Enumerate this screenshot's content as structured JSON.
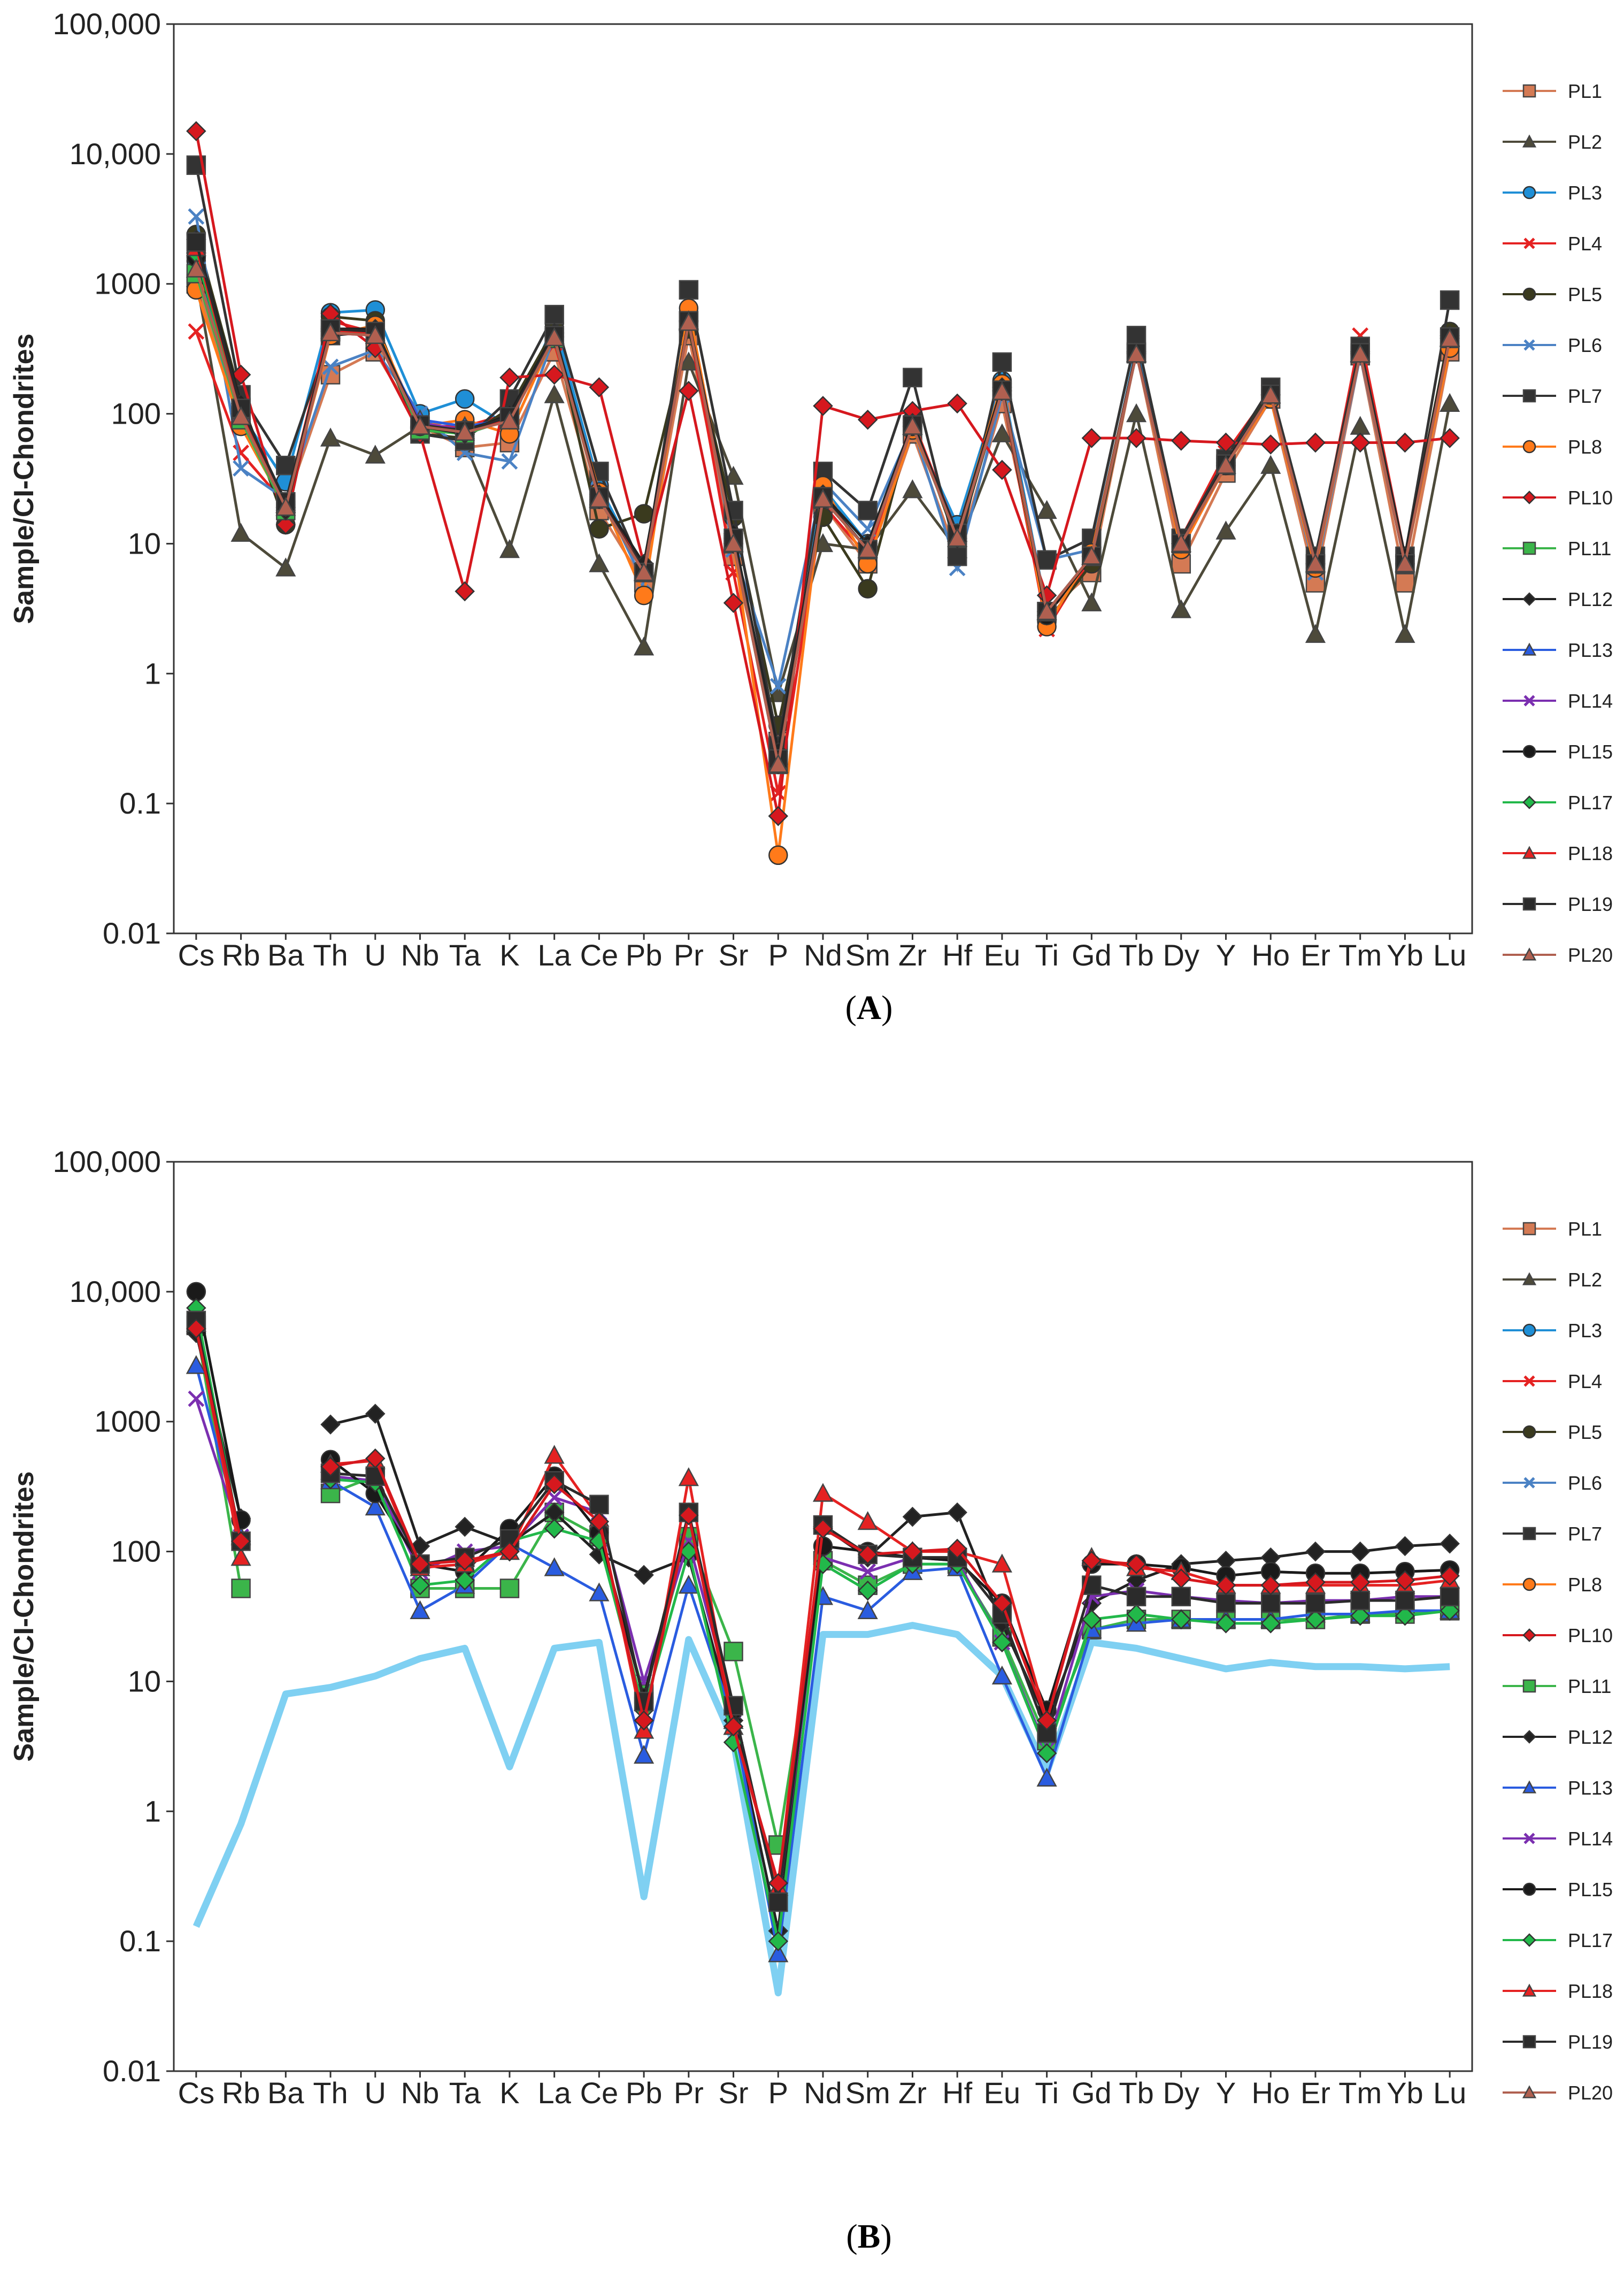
{
  "figure": {
    "caption_a_open": "(",
    "caption_a_letter": "A",
    "caption_a_close": ")",
    "caption_b_open": "(",
    "caption_b_letter": "B",
    "caption_b_close": ")"
  },
  "series_styles": {
    "PL1": {
      "color": "#d47a54",
      "marker": "square"
    },
    "PL2": {
      "color": "#4d4a3a",
      "marker": "triangle"
    },
    "PL3": {
      "color": "#1f8fd6",
      "marker": "circle"
    },
    "PL4": {
      "color": "#e52222",
      "marker": "x"
    },
    "PL5": {
      "color": "#3a3a1e",
      "marker": "circle"
    },
    "PL6": {
      "color": "#4b82c4",
      "marker": "x"
    },
    "PL7": {
      "color": "#333333",
      "marker": "square"
    },
    "PL8": {
      "color": "#ff7a1a",
      "marker": "circle"
    },
    "PL10": {
      "color": "#d6181e",
      "marker": "diamond"
    },
    "PL11": {
      "color": "#3bb54a",
      "marker": "square"
    },
    "PL12": {
      "color": "#222222",
      "marker": "diamond"
    },
    "PL13": {
      "color": "#2a5ce0",
      "marker": "triangle"
    },
    "PL14": {
      "color": "#7b2fb0",
      "marker": "x"
    },
    "PL15": {
      "color": "#1a1a1a",
      "marker": "circle"
    },
    "PL17": {
      "color": "#22b84a",
      "marker": "diamond"
    },
    "PL18": {
      "color": "#e52222",
      "marker": "triangle"
    },
    "PL19": {
      "color": "#2b2b2b",
      "marker": "square"
    },
    "PL20": {
      "color": "#b06050",
      "marker": "triangle"
    }
  },
  "chart_data": [
    {
      "type": "line",
      "panel": "A",
      "ylabel": "Sample/CI-Chondrites",
      "xlabel": "",
      "yscale": "log",
      "ylim": [
        0.01,
        100000
      ],
      "yticks": [
        "0.01",
        "0.1",
        "1",
        "10",
        "100",
        "1000",
        "10,000",
        "100,000"
      ],
      "categories": [
        "Cs",
        "Rb",
        "Ba",
        "Th",
        "U",
        "Nb",
        "Ta",
        "K",
        "La",
        "Ce",
        "Pb",
        "Pr",
        "Sr",
        "P",
        "Nd",
        "Sm",
        "Zr",
        "Hf",
        "Eu",
        "Ti",
        "Gd",
        "Tb",
        "Dy",
        "Y",
        "Ho",
        "Er",
        "Tm",
        "Yb",
        "Lu"
      ],
      "legend": [
        "PL1",
        "PL2",
        "PL3",
        "PL4",
        "PL5",
        "PL6",
        "PL7",
        "PL8",
        "PL10",
        "PL11",
        "PL12",
        "PL13",
        "PL14",
        "PL15",
        "PL17",
        "PL18",
        "PL19",
        "PL20"
      ],
      "series": [
        {
          "name": "PL1",
          "values": [
            1000,
            90,
            20,
            200,
            300,
            80,
            55,
            60,
            300,
            18,
            5,
            400,
            8,
            0.3,
            20,
            7,
            70,
            8,
            120,
            3,
            6,
            300,
            7,
            35,
            130,
            5,
            280,
            5,
            300
          ]
        },
        {
          "name": "PL2",
          "values": [
            1100,
            12,
            6.5,
            65,
            48,
            80,
            60,
            9,
            140,
            7,
            1.6,
            250,
            33,
            0.7,
            10,
            9,
            26,
            9,
            70,
            18,
            3.5,
            100,
            3.1,
            12.5,
            40,
            2,
            80,
            2,
            120
          ]
        },
        {
          "name": "PL3",
          "values": [
            1500,
            100,
            30,
            600,
            630,
            100,
            130,
            80,
            500,
            28,
            6,
            600,
            10,
            0.2,
            27,
            10,
            80,
            14,
            180,
            3,
            8,
            320,
            10,
            45,
            140,
            7,
            300,
            8,
            420
          ]
        },
        {
          "name": "PL4",
          "values": [
            430,
            50,
            20,
            520,
            420,
            80,
            80,
            100,
            350,
            25,
            6,
            500,
            6,
            0.12,
            20,
            8,
            90,
            12,
            150,
            2.2,
            8,
            300,
            11,
            50,
            150,
            7,
            400,
            8,
            420
          ]
        },
        {
          "name": "PL5",
          "values": [
            2400,
            130,
            14,
            560,
            520,
            70,
            65,
            110,
            450,
            13,
            17,
            450,
            16,
            0.4,
            16,
            4.5,
            90,
            10,
            150,
            2.5,
            7,
            300,
            10,
            40,
            150,
            8,
            320,
            8,
            430
          ]
        },
        {
          "name": "PL6",
          "values": [
            3300,
            38,
            22,
            230,
            310,
            100,
            50,
            43,
            400,
            26,
            5,
            600,
            9,
            0.8,
            30,
            13,
            80,
            6.5,
            140,
            7.5,
            9,
            300,
            11,
            42,
            140,
            6,
            280,
            7,
            400
          ]
        },
        {
          "name": "PL7",
          "values": [
            8200,
            140,
            40,
            400,
            430,
            70,
            62,
            130,
            580,
            36,
            6,
            900,
            18,
            0.28,
            36,
            18,
            190,
            8,
            250,
            7.5,
            11,
            400,
            11,
            45,
            160,
            8,
            330,
            8,
            750
          ]
        },
        {
          "name": "PL8",
          "values": [
            900,
            80,
            19,
            400,
            480,
            80,
            90,
            70,
            400,
            25,
            4,
            650,
            10,
            0.04,
            28,
            7,
            75,
            12,
            170,
            2.3,
            8.5,
            300,
            9,
            40,
            130,
            6.5,
            290,
            7,
            320
          ]
        },
        {
          "name": "PL10",
          "values": [
            15000,
            200,
            14,
            590,
            320,
            70,
            4.3,
            190,
            200,
            160,
            7,
            150,
            3.5,
            0.08,
            115,
            90,
            105,
            120,
            37,
            4,
            65,
            65,
            62,
            60,
            58,
            60,
            60,
            60,
            65
          ]
        },
        {
          "name": "PL11",
          "values": [
            1200,
            90,
            18,
            450,
            420,
            75,
            70,
            90,
            380,
            22,
            6,
            520,
            10,
            0.2,
            22,
            9,
            80,
            11,
            150,
            3,
            8,
            290,
            10,
            40,
            140,
            7,
            290,
            7,
            380
          ]
        },
        {
          "name": "PL12",
          "values": [
            2200,
            120,
            18,
            450,
            450,
            80,
            70,
            100,
            420,
            24,
            7,
            520,
            12,
            0.25,
            24,
            10,
            85,
            12,
            160,
            2.8,
            8,
            300,
            10,
            42,
            140,
            7,
            300,
            8,
            400
          ]
        },
        {
          "name": "PL13",
          "values": [
            2000,
            100,
            20,
            430,
            400,
            90,
            80,
            90,
            400,
            22,
            6,
            520,
            10,
            0.2,
            22,
            9,
            80,
            12,
            150,
            3,
            8,
            290,
            10,
            40,
            140,
            7,
            290,
            7,
            380
          ]
        },
        {
          "name": "PL14",
          "values": [
            1800,
            100,
            20,
            420,
            400,
            85,
            75,
            90,
            390,
            22,
            6,
            510,
            10,
            0.2,
            22,
            9,
            80,
            12,
            150,
            3,
            8,
            290,
            10,
            40,
            140,
            7,
            290,
            7,
            380
          ]
        },
        {
          "name": "PL15",
          "values": [
            1600,
            110,
            20,
            440,
            420,
            80,
            75,
            95,
            400,
            23,
            6,
            520,
            11,
            0.22,
            22,
            9,
            80,
            12,
            150,
            2.8,
            8,
            295,
            10,
            40,
            140,
            7,
            295,
            7,
            390
          ]
        },
        {
          "name": "PL17",
          "values": [
            1700,
            100,
            19,
            430,
            410,
            80,
            72,
            90,
            390,
            22,
            6,
            510,
            10,
            0.2,
            22,
            9,
            80,
            11,
            150,
            3,
            8,
            290,
            10,
            40,
            140,
            7,
            290,
            7,
            380
          ]
        },
        {
          "name": "PL18",
          "values": [
            1900,
            105,
            20,
            440,
            420,
            82,
            74,
            92,
            395,
            23,
            6,
            515,
            10,
            0.2,
            22,
            9,
            80,
            12,
            150,
            3,
            8,
            292,
            10,
            40,
            140,
            7,
            292,
            7,
            385
          ]
        },
        {
          "name": "PL19",
          "values": [
            2100,
            110,
            21,
            450,
            430,
            82,
            74,
            95,
            400,
            23,
            6,
            520,
            11,
            0.22,
            23,
            9,
            82,
            12,
            152,
            3,
            8,
            295,
            10,
            41,
            141,
            7,
            295,
            7,
            390
          ]
        },
        {
          "name": "PL20",
          "values": [
            1300,
            95,
            19,
            420,
            400,
            80,
            72,
            88,
            385,
            22,
            6,
            505,
            10,
            0.2,
            22,
            9,
            80,
            11,
            148,
            3,
            8,
            288,
            10,
            40,
            139,
            7,
            288,
            7,
            378
          ]
        }
      ]
    },
    {
      "type": "line",
      "panel": "B",
      "ylabel": "Sample/CI-Chondrites",
      "xlabel": "",
      "yscale": "log",
      "ylim": [
        0.01,
        100000
      ],
      "yticks": [
        "0.01",
        "0.1",
        "1",
        "10",
        "100",
        "1000",
        "10,000",
        "100,000"
      ],
      "categories": [
        "Cs",
        "Rb",
        "Ba",
        "Th",
        "U",
        "Nb",
        "Ta",
        "K",
        "La",
        "Ce",
        "Pb",
        "Pr",
        "Sr",
        "P",
        "Nd",
        "Sm",
        "Zr",
        "Hf",
        "Eu",
        "Ti",
        "Gd",
        "Tb",
        "Dy",
        "Y",
        "Ho",
        "Er",
        "Tm",
        "Yb",
        "Lu"
      ],
      "legend": [
        "PL1",
        "PL2",
        "PL3",
        "PL4",
        "PL5",
        "PL6",
        "PL7",
        "PL8",
        "PL10",
        "PL11",
        "PL12",
        "PL13",
        "PL14",
        "PL15",
        "PL17",
        "PL18",
        "PL19",
        "PL20"
      ],
      "reference_line": {
        "color": "#7fd0f2",
        "values": [
          0.13,
          0.8,
          8,
          9,
          11,
          15,
          18,
          2.2,
          18,
          20,
          0.22,
          21,
          3.5,
          0.04,
          23,
          23,
          27,
          23,
          11,
          2,
          20,
          18,
          15,
          12.5,
          14,
          13,
          13,
          12.5,
          13
        ]
      },
      "series": [
        {
          "name": "PL11",
          "values": [
            5500,
            52,
            null,
            280,
            380,
            52,
            52,
            52,
            200,
            130,
            8,
            130,
            17,
            0.55,
            85,
            55,
            80,
            80,
            22,
            3.5,
            25,
            30,
            30,
            30,
            30,
            30,
            33,
            33,
            35
          ]
        },
        {
          "name": "PL12",
          "values": [
            4800,
            180,
            null,
            950,
            1150,
            110,
            155,
            115,
            200,
            95,
            66,
            90,
            5,
            0.12,
            155,
            90,
            185,
            200,
            28,
            5,
            40,
            60,
            80,
            85,
            90,
            100,
            100,
            110,
            115
          ]
        },
        {
          "name": "PL13",
          "values": [
            2700,
            130,
            null,
            350,
            220,
            35,
            55,
            115,
            75,
            48,
            2.7,
            55,
            5,
            0.08,
            45,
            35,
            70,
            75,
            11,
            1.8,
            25,
            28,
            30,
            30,
            30,
            33,
            33,
            35,
            35
          ]
        },
        {
          "name": "PL14",
          "values": [
            1500,
            130,
            null,
            380,
            350,
            70,
            100,
            110,
            260,
            200,
            10,
            120,
            6,
            0.2,
            90,
            70,
            90,
            85,
            20,
            3,
            45,
            50,
            45,
            42,
            40,
            42,
            42,
            45,
            45
          ]
        },
        {
          "name": "PL15",
          "values": [
            10000,
            175,
            null,
            510,
            280,
            80,
            70,
            150,
            380,
            140,
            7.5,
            200,
            6,
            0.2,
            110,
            100,
            90,
            85,
            40,
            6,
            80,
            80,
            75,
            65,
            70,
            68,
            68,
            70,
            72
          ]
        },
        {
          "name": "PL17",
          "values": [
            7500,
            115,
            null,
            360,
            340,
            55,
            60,
            120,
            150,
            120,
            6,
            100,
            3.4,
            0.1,
            80,
            50,
            80,
            80,
            20,
            2.8,
            30,
            33,
            30,
            28,
            28,
            30,
            32,
            32,
            35
          ]
        },
        {
          "name": "PL18",
          "values": [
            5700,
            90,
            null,
            470,
            500,
            75,
            80,
            100,
            550,
            180,
            4.2,
            370,
            4.5,
            0.26,
            280,
            170,
            100,
            100,
            80,
            5,
            90,
            75,
            70,
            55,
            55,
            55,
            55,
            55,
            60
          ]
        },
        {
          "name": "PL19",
          "values": [
            6000,
            120,
            null,
            400,
            380,
            80,
            90,
            125,
            350,
            230,
            7,
            200,
            6.5,
            0.2,
            160,
            95,
            90,
            90,
            33,
            4,
            55,
            45,
            45,
            40,
            40,
            40,
            42,
            42,
            45
          ]
        },
        {
          "name": "PL10",
          "values": [
            5200,
            120,
            null,
            450,
            520,
            80,
            85,
            100,
            330,
            170,
            5,
            190,
            4.5,
            0.28,
            150,
            95,
            100,
            105,
            40,
            5,
            85,
            80,
            62,
            55,
            55,
            58,
            58,
            60,
            65
          ]
        }
      ]
    }
  ]
}
